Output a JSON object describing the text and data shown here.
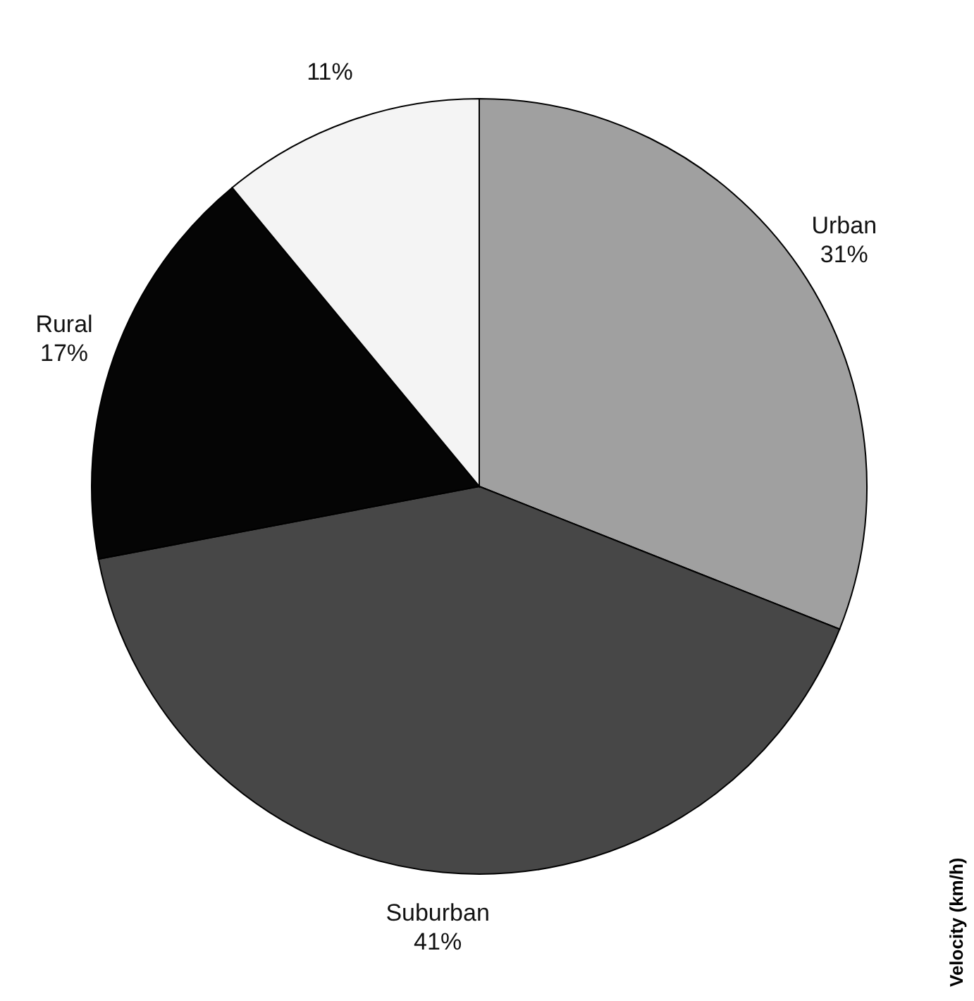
{
  "chart_data": {
    "type": "pie",
    "categories": [
      "Urban",
      "Suburban",
      "Rural",
      null
    ],
    "values": [
      31,
      41,
      17,
      11
    ],
    "colors": [
      "#a0a0a0",
      "#474747",
      "#050505",
      "#f4f4f4"
    ],
    "value_labels": [
      "31%",
      "41%",
      "17%",
      "11%"
    ],
    "annotations": [
      "Velocity (km/h)"
    ]
  }
}
